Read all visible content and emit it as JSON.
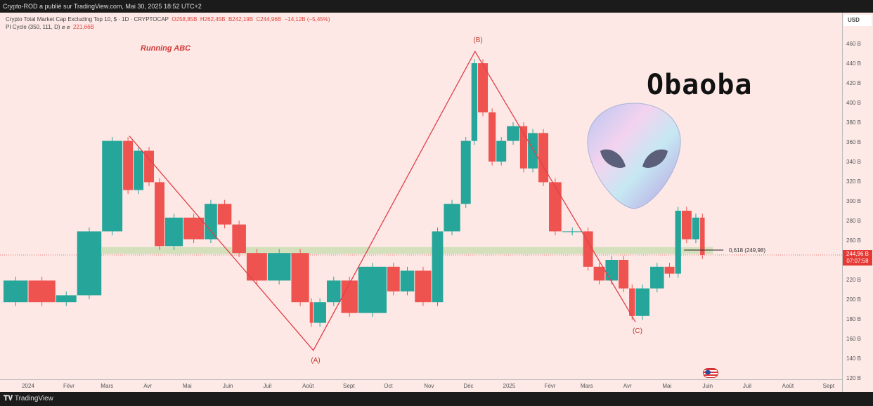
{
  "header": {
    "publisher": "Crypto-ROD a publié sur TradingView.com, Mai 30, 2025 18:52 UTC+2"
  },
  "legend": {
    "symbol": "Crypto Total Market Cap Excluding Top 10, $ · 1D · CRYPTOCAP",
    "open": "O258,85B",
    "high": "H262,45B",
    "low": "B242,19B",
    "close": "C244,96B",
    "change": "−14,12B (−5,45%)",
    "indicator": "PI Cycle (350, 111, D)  ⌀  ⌀",
    "indicator_value": "221,66B"
  },
  "footer": {
    "brand": "TradingView"
  },
  "currency": "USD",
  "last_price": {
    "value": "244,96 B",
    "countdown": "07:07:58"
  },
  "annotations": {
    "title": "Running ABC",
    "wave_a": "(A)",
    "wave_b": "(B)",
    "wave_c": "(C)",
    "fib": "0,618 (249,98)",
    "logo_text": "Obaoba"
  },
  "colors": {
    "up": "#26a69a",
    "down": "#ef5350",
    "wave_line": "#e0404a",
    "zone": "#c9dcb0",
    "background": "#fde8e5",
    "price_tag": "#e53935"
  },
  "icons": {
    "flag": "us-flag-icon",
    "alien": "alien-head-logo",
    "brand": "tradingview-logo"
  },
  "chart_data": {
    "type": "candlestick",
    "y_unit": "B USD",
    "ylim": [
      120,
      470
    ],
    "y_ticks": [
      {
        "v": 460,
        "l": "460 B"
      },
      {
        "v": 440,
        "l": "440 B"
      },
      {
        "v": 420,
        "l": "420 B"
      },
      {
        "v": 400,
        "l": "400 B"
      },
      {
        "v": 380,
        "l": "380 B"
      },
      {
        "v": 360,
        "l": "360 B"
      },
      {
        "v": 340,
        "l": "340 B"
      },
      {
        "v": 320,
        "l": "320 B"
      },
      {
        "v": 300,
        "l": "300 B"
      },
      {
        "v": 280,
        "l": "280 B"
      },
      {
        "v": 260,
        "l": "260 B"
      },
      {
        "v": 220,
        "l": "220 B"
      },
      {
        "v": 200,
        "l": "200 B"
      },
      {
        "v": 180,
        "l": "180 B"
      },
      {
        "v": 160,
        "l": "160 B"
      },
      {
        "v": 140,
        "l": "140 B"
      },
      {
        "v": 120,
        "l": "120 B"
      }
    ],
    "x_ticks": [
      {
        "d": "2024-01-01",
        "l": "2024"
      },
      {
        "d": "2024-02-01",
        "l": "Févr"
      },
      {
        "d": "2024-03-01",
        "l": "Mars"
      },
      {
        "d": "2024-04-01",
        "l": "Avr"
      },
      {
        "d": "2024-05-01",
        "l": "Mai"
      },
      {
        "d": "2024-06-01",
        "l": "Juin"
      },
      {
        "d": "2024-07-01",
        "l": "Juil"
      },
      {
        "d": "2024-08-01",
        "l": "Août"
      },
      {
        "d": "2024-09-01",
        "l": "Sept"
      },
      {
        "d": "2024-10-01",
        "l": "Oct"
      },
      {
        "d": "2024-11-01",
        "l": "Nov"
      },
      {
        "d": "2024-12-01",
        "l": "Déc"
      },
      {
        "d": "2025-01-01",
        "l": "2025"
      },
      {
        "d": "2025-02-01",
        "l": "Févr"
      },
      {
        "d": "2025-03-01",
        "l": "Mars"
      },
      {
        "d": "2025-04-01",
        "l": "Avr"
      },
      {
        "d": "2025-05-01",
        "l": "Mai"
      },
      {
        "d": "2025-06-01",
        "l": "Juin"
      },
      {
        "d": "2025-07-01",
        "l": "Juil"
      },
      {
        "d": "2025-08-01",
        "l": "Août"
      },
      {
        "d": "2025-09-01",
        "l": "Sept"
      }
    ],
    "prices": [
      [
        "2023-12-13",
        197
      ],
      [
        "2024-01-01",
        219
      ],
      [
        "2024-01-22",
        197
      ],
      [
        "2024-02-07",
        204
      ],
      [
        "2024-02-26",
        269
      ],
      [
        "2024-03-13",
        361
      ],
      [
        "2024-03-21",
        311
      ],
      [
        "2024-03-29",
        351
      ],
      [
        "2024-04-06",
        319
      ],
      [
        "2024-04-14",
        254
      ],
      [
        "2024-04-28",
        283
      ],
      [
        "2024-05-14",
        261
      ],
      [
        "2024-05-24",
        297
      ],
      [
        "2024-06-04",
        276
      ],
      [
        "2024-06-15",
        247
      ],
      [
        "2024-07-01",
        219
      ],
      [
        "2024-07-19",
        247
      ],
      [
        "2024-08-02",
        197
      ],
      [
        "2024-08-05",
        176
      ],
      [
        "2024-08-15",
        197
      ],
      [
        "2024-08-26",
        219
      ],
      [
        "2024-09-08",
        186
      ],
      [
        "2024-09-30",
        233
      ],
      [
        "2024-10-10",
        208
      ],
      [
        "2024-10-21",
        229
      ],
      [
        "2024-11-03",
        197
      ],
      [
        "2024-11-12",
        269
      ],
      [
        "2024-11-25",
        297
      ],
      [
        "2024-12-03",
        361
      ],
      [
        "2024-12-08",
        440
      ],
      [
        "2024-12-16",
        390
      ],
      [
        "2024-12-22",
        340
      ],
      [
        "2024-12-30",
        361
      ],
      [
        "2025-01-09",
        376
      ],
      [
        "2025-01-15",
        333
      ],
      [
        "2025-01-23",
        369
      ],
      [
        "2025-01-31",
        319
      ],
      [
        "2025-02-10",
        269
      ],
      [
        "2025-02-26",
        269
      ],
      [
        "2025-03-06",
        233
      ],
      [
        "2025-03-15",
        219
      ],
      [
        "2025-03-25",
        240
      ],
      [
        "2025-04-02",
        211
      ],
      [
        "2025-04-07",
        183
      ],
      [
        "2025-04-18",
        211
      ],
      [
        "2025-04-29",
        233
      ],
      [
        "2025-05-07",
        226
      ],
      [
        "2025-05-12",
        290
      ],
      [
        "2025-05-20",
        261
      ],
      [
        "2025-05-26",
        283
      ],
      [
        "2025-05-30",
        245
      ]
    ],
    "waves": [
      [
        "2024-03-18",
        366
      ],
      [
        "2024-08-05",
        148
      ],
      [
        "2024-12-06",
        452
      ],
      [
        "2025-04-07",
        177
      ]
    ],
    "support_zone": {
      "from": "2024-02-26",
      "to": "2025-06-05",
      "low": 246,
      "high": 253
    },
    "fib_level": {
      "from": "2025-05-14",
      "to": "2025-06-13",
      "value": 249.98
    },
    "grid": false
  }
}
